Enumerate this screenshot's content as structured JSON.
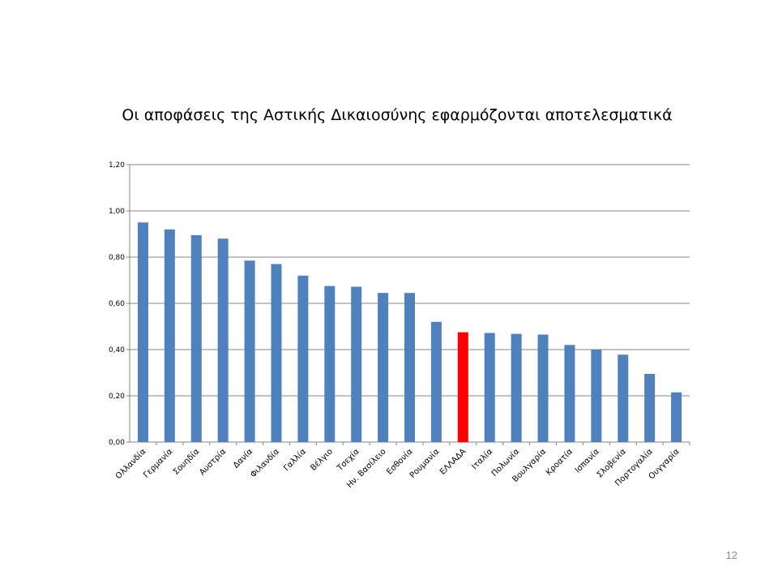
{
  "slide": {
    "page_number": "12"
  },
  "chart_data": {
    "type": "bar",
    "title": "Οι αποφάσεις της Αστικής Δικαιοσύνης εφαρμόζονται αποτελεσματικά",
    "xlabel": "",
    "ylabel": "",
    "ylim": [
      0,
      1.2
    ],
    "yticks": [
      "0,00",
      "0,20",
      "0,40",
      "0,60",
      "0,80",
      "1,00",
      "1,20"
    ],
    "grid": true,
    "legend": "none",
    "categories": [
      "Ολλανδία",
      "Γερμανία",
      "Σουηδία",
      "Αυστρία",
      "Δανία",
      "Φιλανδία",
      "Γαλλία",
      "Βέλγιο",
      "Τσεχία",
      "Ην. Βασίλειο",
      "Εσθονία",
      "Ρουμανία",
      "ΕΛΛΑΔΑ",
      "Ιταλία",
      "Πολωνία",
      "Βουλγαρία",
      "Κροατία",
      "Ισπανία",
      "Σλοβενία",
      "Πορτογαλία",
      "Ουγγαρία"
    ],
    "values": [
      0.95,
      0.92,
      0.895,
      0.88,
      0.785,
      0.77,
      0.72,
      0.675,
      0.672,
      0.645,
      0.645,
      0.52,
      0.475,
      0.472,
      0.468,
      0.465,
      0.42,
      0.4,
      0.378,
      0.295,
      0.215
    ],
    "colors": {
      "default": "#4f81bd",
      "highlight": "#ff0000"
    },
    "highlight_category": "ΕΛΛΑΔΑ"
  }
}
